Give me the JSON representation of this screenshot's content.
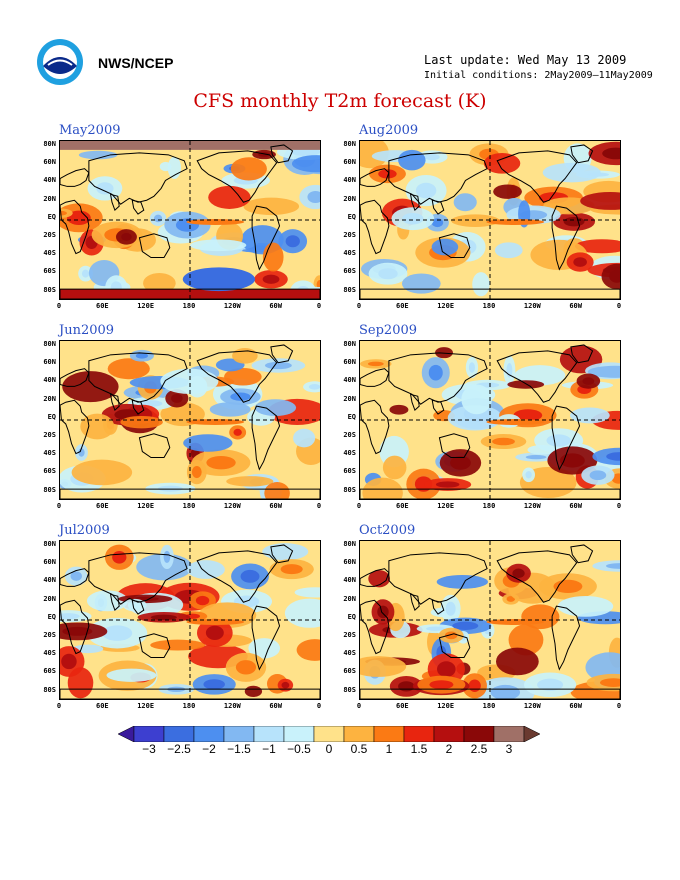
{
  "header": {
    "agency": "NWS/NCEP",
    "last_update": "Last update: Wed May 13 2009",
    "initial_conditions": "Initial conditions: 2May2009–11May2009",
    "title": "CFS monthly T2m forecast (K)"
  },
  "axes": {
    "lat_labels": [
      "80N",
      "60N",
      "40N",
      "20N",
      "EQ",
      "20S",
      "40S",
      "60S",
      "80S"
    ],
    "lon_labels": [
      "0",
      "60E",
      "120E",
      "180",
      "120W",
      "60W",
      "0"
    ]
  },
  "panels": [
    {
      "label": "May2009"
    },
    {
      "label": "Aug2009"
    },
    {
      "label": "Jun2009"
    },
    {
      "label": "Sep2009"
    },
    {
      "label": "Jul2009"
    },
    {
      "label": "Oct2009"
    }
  ],
  "colorbar": {
    "labels": [
      "−3",
      "−2.5",
      "−2",
      "−1.5",
      "−1",
      "−0.5",
      "0",
      "0.5",
      "1",
      "1.5",
      "2",
      "2.5",
      "3"
    ],
    "colors": [
      "#3a1a9c",
      "#3d3fd0",
      "#3b6ee0",
      "#4d8ff0",
      "#82b8f2",
      "#b7e3fb",
      "#c9f2fb",
      "#ffe28a",
      "#fdb340",
      "#fb7a14",
      "#e8250f",
      "#b50f0f",
      "#8a0808",
      "#a07067",
      "#6a3a30"
    ]
  },
  "logo_icon": "noaa-logo-icon"
}
